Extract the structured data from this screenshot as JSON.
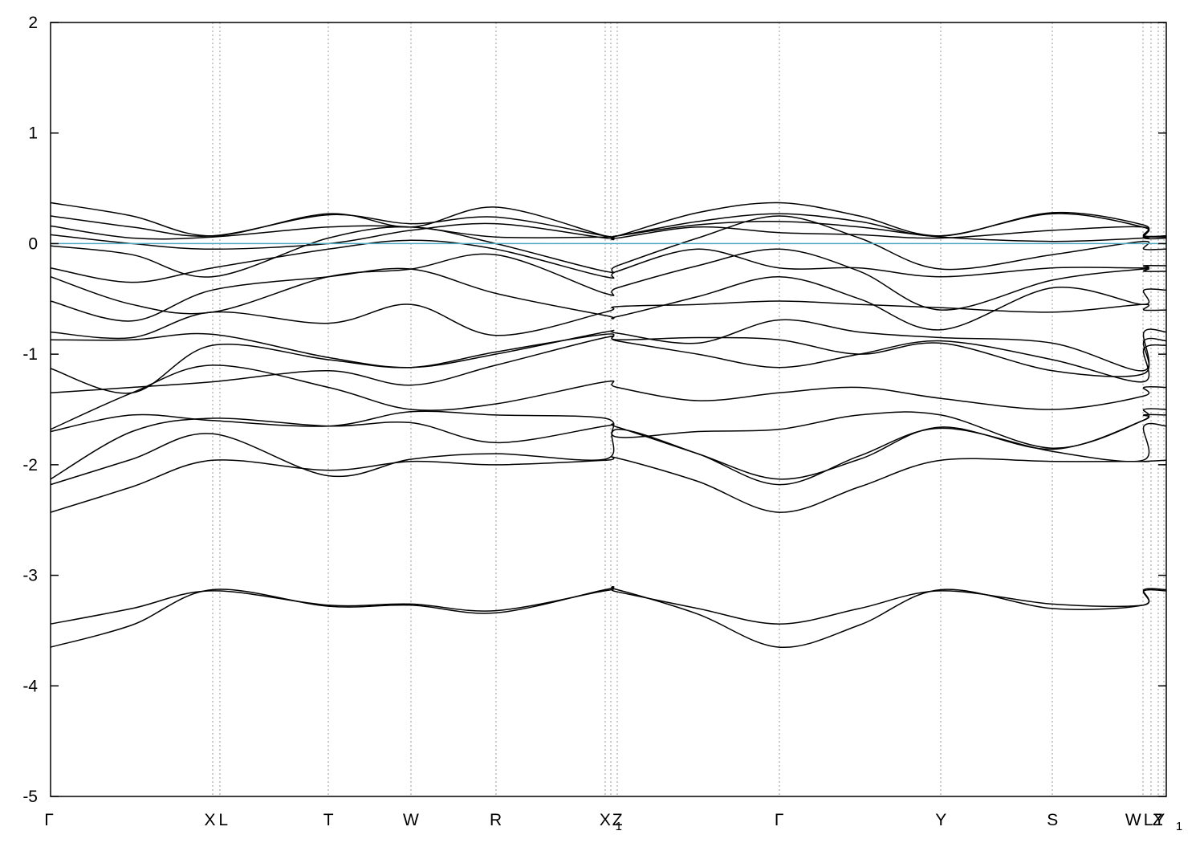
{
  "chart_data": {
    "type": "line",
    "title": "",
    "xlabel": "",
    "ylabel": "",
    "ylim": [
      -5,
      2
    ],
    "yticks": [
      "2",
      "1",
      "0",
      "-1",
      "-2",
      "-3",
      "-4",
      "-5"
    ],
    "ytick_values": [
      2,
      1,
      0,
      -1,
      -2,
      -3,
      -4,
      -5
    ],
    "xlim": [
      0,
      1
    ],
    "xticks": [
      {
        "label": "Γ",
        "x": 0.0
      },
      {
        "label": "X",
        "x": 0.145
      },
      {
        "label": "L",
        "x": 0.152
      },
      {
        "label": "T",
        "x": 0.249
      },
      {
        "label": "W",
        "x": 0.323
      },
      {
        "label": "R",
        "x": 0.399
      },
      {
        "label": "X",
        "x": 0.497
      },
      {
        "label": "1",
        "x": 0.502
      },
      {
        "label": "Z",
        "x": 0.508
      },
      {
        "label": "Γ",
        "x": 0.653
      },
      {
        "label": "Y",
        "x": 0.798
      },
      {
        "label": "S",
        "x": 0.898
      },
      {
        "label": "W",
        "x": 0.979
      },
      {
        "label": "L",
        "x": 0.986
      },
      {
        "label": "Z",
        "x": 0.993
      },
      {
        "label": "Y",
        "x": 0.998
      },
      {
        "label": "1",
        "x": 1.0
      }
    ],
    "fermi_level": {
      "y": 0,
      "color": "#4ba8c0"
    },
    "colors": {
      "bands": "#000000",
      "gridlines": "#999999",
      "fermi": "#4ba8c0"
    },
    "grid": "vertical dotted at high-symmetry points",
    "series": [
      {
        "x": [
          0,
          0.073,
          0.145,
          0.249,
          0.323,
          0.399,
          0.497,
          0.508,
          0.58,
          0.653,
          0.725,
          0.798,
          0.898,
          0.979,
          0.98,
          1.0
        ],
        "y": [
          -3.65,
          -3.45,
          -3.13,
          -3.28,
          -3.27,
          -3.34,
          -3.13,
          -3.13,
          -3.35,
          -3.65,
          -3.45,
          -3.13,
          -3.3,
          -3.27,
          -3.13,
          -3.13
        ]
      },
      {
        "x": [
          0,
          0.073,
          0.145,
          0.249,
          0.323,
          0.399,
          0.497,
          0.508,
          0.58,
          0.653,
          0.725,
          0.798,
          0.898,
          0.979,
          0.98,
          1.0
        ],
        "y": [
          -3.44,
          -3.3,
          -3.14,
          -3.27,
          -3.26,
          -3.32,
          -3.14,
          -3.15,
          -3.3,
          -3.44,
          -3.3,
          -3.14,
          -3.26,
          -3.27,
          -3.14,
          -3.14
        ]
      },
      {
        "x": [
          0,
          0.073,
          0.145,
          0.249,
          0.323,
          0.399,
          0.497,
          0.508,
          0.58,
          0.653,
          0.725,
          0.798,
          0.898,
          0.979,
          0.98,
          1.0
        ],
        "y": [
          -2.43,
          -2.2,
          -1.96,
          -2.05,
          -1.97,
          -2.0,
          -1.96,
          -1.94,
          -2.15,
          -2.43,
          -2.2,
          -1.96,
          -1.97,
          -1.97,
          -1.97,
          -1.96
        ]
      },
      {
        "x": [
          0,
          0.073,
          0.145,
          0.249,
          0.323,
          0.399,
          0.497,
          0.508,
          0.58,
          0.653,
          0.725,
          0.798,
          0.898,
          0.979,
          0.98,
          1.0
        ],
        "y": [
          -2.18,
          -1.95,
          -1.72,
          -2.1,
          -1.95,
          -1.9,
          -1.95,
          -1.68,
          -1.9,
          -2.18,
          -1.92,
          -1.67,
          -1.88,
          -1.96,
          -1.65,
          -1.65
        ]
      },
      {
        "x": [
          0,
          0.073,
          0.145,
          0.249,
          0.323,
          0.399,
          0.497,
          0.508,
          0.58,
          0.653,
          0.725,
          0.798,
          0.898,
          0.979,
          0.98,
          1.0
        ],
        "y": [
          -2.13,
          -1.7,
          -1.58,
          -1.65,
          -1.62,
          -1.8,
          -1.65,
          -1.66,
          -1.9,
          -2.13,
          -1.95,
          -1.66,
          -1.86,
          -1.6,
          -1.55,
          -1.55
        ]
      },
      {
        "x": [
          0,
          0.073,
          0.145,
          0.249,
          0.323,
          0.399,
          0.497,
          0.508,
          0.58,
          0.653,
          0.725,
          0.798,
          0.898,
          0.979,
          0.98,
          1.0
        ],
        "y": [
          -1.7,
          -1.55,
          -1.6,
          -1.65,
          -1.52,
          -1.55,
          -1.58,
          -1.75,
          -1.7,
          -1.68,
          -1.55,
          -1.55,
          -1.85,
          -1.6,
          -1.5,
          -1.5
        ]
      },
      {
        "x": [
          0,
          0.073,
          0.145,
          0.249,
          0.323,
          0.399,
          0.497,
          0.508,
          0.58,
          0.653,
          0.725,
          0.798,
          0.898,
          0.979,
          0.98,
          1.0
        ],
        "y": [
          -1.68,
          -1.35,
          -1.1,
          -1.3,
          -1.5,
          -1.45,
          -1.25,
          -1.3,
          -1.42,
          -1.35,
          -1.3,
          -1.4,
          -1.5,
          -1.38,
          -1.3,
          -1.3
        ]
      },
      {
        "x": [
          0,
          0.073,
          0.145,
          0.249,
          0.323,
          0.399,
          0.497,
          0.508,
          0.58,
          0.653,
          0.725,
          0.798,
          0.898,
          0.979,
          0.98,
          1.0
        ],
        "y": [
          -1.35,
          -1.3,
          -1.25,
          -1.15,
          -1.28,
          -1.1,
          -0.85,
          -0.88,
          -1.0,
          -1.12,
          -1.0,
          -0.88,
          -1.05,
          -1.25,
          -0.95,
          -0.92
        ]
      },
      {
        "x": [
          0,
          0.073,
          0.145,
          0.249,
          0.323,
          0.399,
          0.497,
          0.508,
          0.58,
          0.653,
          0.725,
          0.798,
          0.898,
          0.979,
          0.98,
          1.0
        ],
        "y": [
          -1.13,
          -1.35,
          -0.92,
          -1.05,
          -1.12,
          -0.98,
          -0.82,
          -0.87,
          -0.85,
          -0.87,
          -1.0,
          -0.9,
          -1.15,
          -1.18,
          -0.88,
          -0.88
        ]
      },
      {
        "x": [
          0,
          0.073,
          0.145,
          0.249,
          0.323,
          0.399,
          0.497,
          0.508,
          0.58,
          0.653,
          0.725,
          0.798,
          0.898,
          0.979,
          0.98,
          1.0
        ],
        "y": [
          -0.87,
          -0.87,
          -0.82,
          -1.03,
          -1.12,
          -1.0,
          -0.8,
          -0.81,
          -0.9,
          -0.69,
          -0.8,
          -0.85,
          -0.9,
          -1.15,
          -0.8,
          -0.8
        ]
      },
      {
        "x": [
          0,
          0.073,
          0.145,
          0.249,
          0.323,
          0.399,
          0.497,
          0.508,
          0.58,
          0.653,
          0.725,
          0.798,
          0.898,
          0.979,
          0.98,
          1.0
        ],
        "y": [
          -0.8,
          -0.85,
          -0.62,
          -0.72,
          -0.55,
          -0.83,
          -0.62,
          -0.57,
          -0.55,
          -0.52,
          -0.55,
          -0.58,
          -0.62,
          -0.55,
          -0.6,
          -0.6
        ]
      },
      {
        "x": [
          0,
          0.073,
          0.145,
          0.249,
          0.323,
          0.399,
          0.497,
          0.508,
          0.58,
          0.653,
          0.725,
          0.798,
          0.898,
          0.979,
          0.98,
          1.0
        ],
        "y": [
          -0.52,
          -0.7,
          -0.42,
          -0.3,
          -0.23,
          -0.45,
          -0.65,
          -0.66,
          -0.48,
          -0.3,
          -0.5,
          -0.78,
          -0.4,
          -0.55,
          -0.42,
          -0.42
        ]
      },
      {
        "x": [
          0,
          0.073,
          0.145,
          0.249,
          0.323,
          0.399,
          0.497,
          0.508,
          0.58,
          0.653,
          0.725,
          0.798,
          0.898,
          0.979,
          0.98,
          1.0
        ],
        "y": [
          -0.3,
          -0.55,
          -0.62,
          -0.3,
          -0.23,
          -0.1,
          -0.45,
          -0.4,
          -0.2,
          -0.05,
          -0.25,
          -0.6,
          -0.33,
          -0.23,
          -0.25,
          -0.25
        ]
      },
      {
        "x": [
          0,
          0.073,
          0.145,
          0.249,
          0.323,
          0.399,
          0.497,
          0.508,
          0.58,
          0.653,
          0.725,
          0.798,
          0.898,
          0.979,
          0.98,
          1.0
        ],
        "y": [
          -0.22,
          -0.35,
          -0.22,
          -0.05,
          0.03,
          -0.05,
          -0.3,
          -0.25,
          -0.05,
          -0.22,
          -0.22,
          -0.3,
          -0.22,
          -0.22,
          -0.2,
          -0.2
        ]
      },
      {
        "x": [
          0,
          0.073,
          0.145,
          0.249,
          0.323,
          0.399,
          0.497,
          0.508,
          0.58,
          0.653,
          0.725,
          0.798,
          0.898,
          0.979,
          0.98,
          1.0
        ],
        "y": [
          -0.02,
          -0.1,
          -0.3,
          0.05,
          0.15,
          0.0,
          -0.25,
          -0.2,
          0.05,
          0.25,
          0.05,
          -0.23,
          -0.1,
          0.02,
          -0.05,
          -0.05
        ]
      },
      {
        "x": [
          0,
          0.073,
          0.145,
          0.249,
          0.323,
          0.399,
          0.497,
          0.508,
          0.58,
          0.653,
          0.725,
          0.798,
          0.898,
          0.979,
          0.98,
          1.0
        ],
        "y": [
          0.08,
          0.0,
          -0.05,
          0.0,
          0.12,
          0.18,
          0.05,
          0.05,
          0.15,
          0.1,
          0.08,
          0.05,
          0.12,
          0.15,
          0.05,
          0.05
        ]
      },
      {
        "x": [
          0,
          0.073,
          0.145,
          0.249,
          0.323,
          0.399,
          0.497,
          0.508,
          0.58,
          0.653,
          0.725,
          0.798,
          0.898,
          0.979,
          0.98,
          1.0
        ],
        "y": [
          0.16,
          0.05,
          0.06,
          0.15,
          0.15,
          0.06,
          0.06,
          0.07,
          0.17,
          0.2,
          0.15,
          0.06,
          0.02,
          0.05,
          0.06,
          0.06
        ]
      },
      {
        "x": [
          0,
          0.073,
          0.145,
          0.249,
          0.323,
          0.399,
          0.497,
          0.508,
          0.58,
          0.653,
          0.725,
          0.798,
          0.898,
          0.979,
          0.98,
          1.0
        ],
        "y": [
          0.25,
          0.15,
          0.07,
          0.26,
          0.18,
          0.24,
          0.07,
          0.07,
          0.2,
          0.27,
          0.2,
          0.07,
          0.27,
          0.15,
          0.07,
          0.07
        ]
      },
      {
        "x": [
          0,
          0.073,
          0.145,
          0.249,
          0.323,
          0.399,
          0.497,
          0.508,
          0.58,
          0.653,
          0.725,
          0.798,
          0.898,
          0.979,
          0.98,
          1.0
        ],
        "y": [
          0.37,
          0.25,
          0.07,
          0.27,
          0.15,
          0.33,
          0.07,
          0.07,
          0.28,
          0.37,
          0.25,
          0.07,
          0.28,
          0.17,
          0.07,
          0.07
        ]
      }
    ]
  }
}
